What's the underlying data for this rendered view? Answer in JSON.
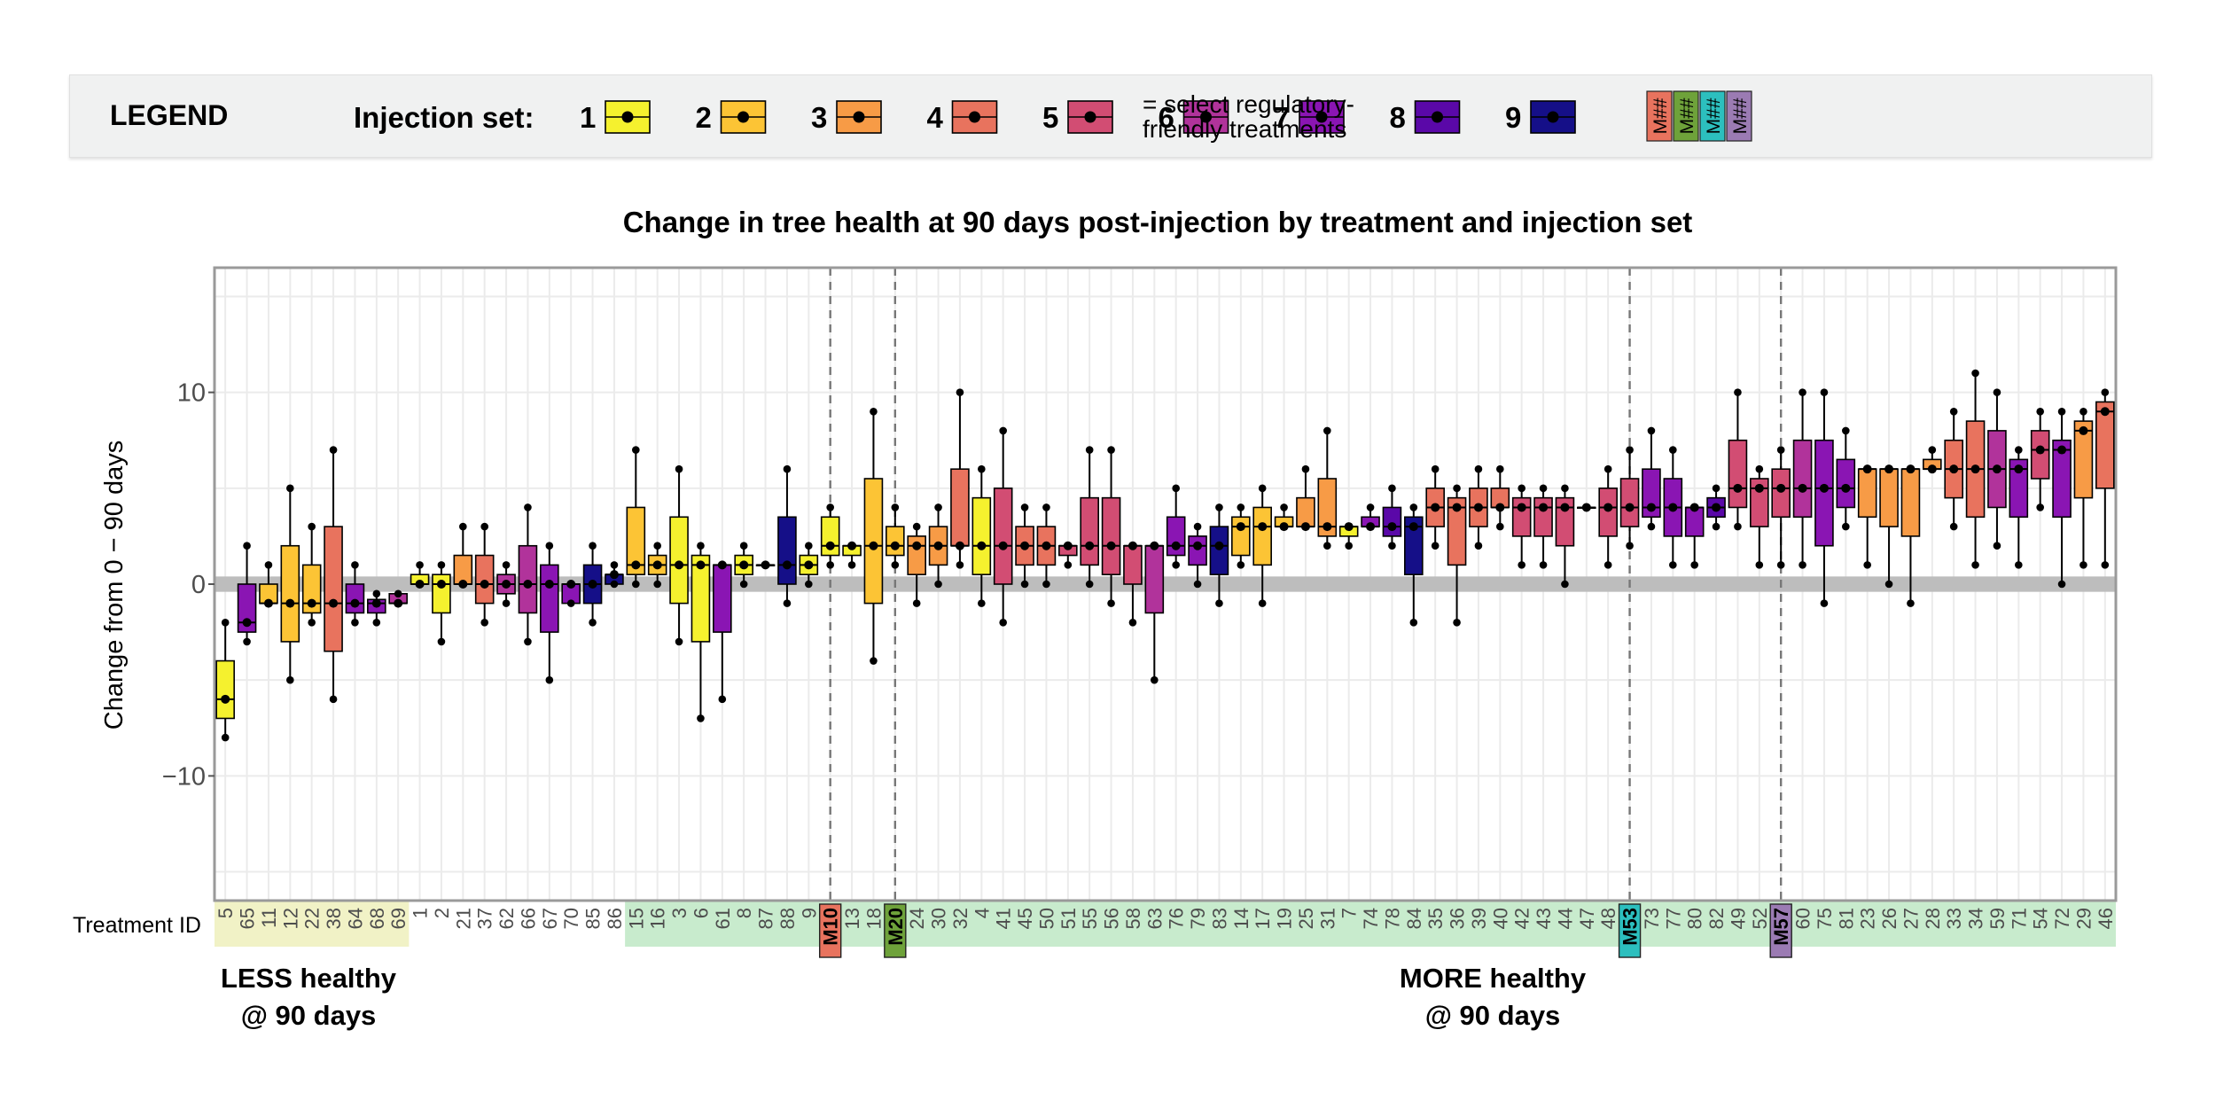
{
  "legend": {
    "title": "LEGEND",
    "injection_label": "Injection set:",
    "sets": [
      {
        "label": "1",
        "color": "#f5f12e"
      },
      {
        "label": "2",
        "color": "#fcc435"
      },
      {
        "label": "3",
        "color": "#f79b46"
      },
      {
        "label": "4",
        "color": "#e8735e"
      },
      {
        "label": "5",
        "color": "#d24d73"
      },
      {
        "label": "6",
        "color": "#b1339b"
      },
      {
        "label": "7",
        "color": "#8a15b3"
      },
      {
        "label": "8",
        "color": "#5a08a8"
      },
      {
        "label": "9",
        "color": "#150f88"
      }
    ],
    "swatch_text": "M##",
    "swatch_colors": [
      "#e8735e",
      "#6ea23a",
      "#2cbfbe",
      "#9b7bb3"
    ],
    "note_line1": "= select regulatory-",
    "note_line2": "friendly treatments"
  },
  "annotations": {
    "x_axis_title": "Treatment ID",
    "less_line1": "LESS healthy",
    "less_line2": "@ 90 days",
    "more_line1": "MORE healthy",
    "more_line2": "@ 90 days",
    "zone_colors": {
      "less": "#f1f2c6",
      "more": "#c8ebcd"
    }
  },
  "chart_data": {
    "type": "box",
    "title": "Change in tree health at 90 days post-injection by treatment and injection set",
    "xlabel": "Treatment ID",
    "ylabel": "Change from 0 − 90 days",
    "ylim": [
      -16.5,
      16.5
    ],
    "yticks": [
      -10,
      0,
      10
    ],
    "ytick_labels": [
      "−10",
      "0",
      "10"
    ],
    "series": [
      {
        "id": "5",
        "set": 1,
        "zone": "less",
        "q1": -7,
        "median": -6,
        "q3": -4,
        "min": -8,
        "max": -2
      },
      {
        "id": "65",
        "set": 7,
        "zone": "less",
        "q1": -2.5,
        "median": -2,
        "q3": 0,
        "min": -3,
        "max": 2
      },
      {
        "id": "11",
        "set": 2,
        "zone": "less",
        "q1": -1,
        "median": -1,
        "q3": 0,
        "min": -1,
        "max": 1
      },
      {
        "id": "12",
        "set": 2,
        "zone": "less",
        "q1": -3,
        "median": -1,
        "q3": 2,
        "min": -5,
        "max": 5
      },
      {
        "id": "22",
        "set": 2,
        "zone": "less",
        "q1": -1.5,
        "median": -1,
        "q3": 1,
        "min": -2,
        "max": 3
      },
      {
        "id": "38",
        "set": 4,
        "zone": "less",
        "q1": -3.5,
        "median": -1,
        "q3": 3,
        "min": -6,
        "max": 7
      },
      {
        "id": "64",
        "set": 7,
        "zone": "less",
        "q1": -1.5,
        "median": -1,
        "q3": 0,
        "min": -2,
        "max": 1
      },
      {
        "id": "68",
        "set": 7,
        "zone": "less",
        "q1": -1.5,
        "median": -1,
        "q3": -0.8,
        "min": -2,
        "max": -0.5
      },
      {
        "id": "69",
        "set": 6,
        "zone": "less",
        "q1": -1,
        "median": -1,
        "q3": -0.5,
        "min": -1,
        "max": -0.5
      },
      {
        "id": "1",
        "set": 1,
        "zone": "none",
        "q1": 0,
        "median": 0,
        "q3": 0.5,
        "min": 0,
        "max": 1
      },
      {
        "id": "2",
        "set": 1,
        "zone": "none",
        "q1": -1.5,
        "median": 0,
        "q3": 0.5,
        "min": -3,
        "max": 1
      },
      {
        "id": "21",
        "set": 3,
        "zone": "none",
        "q1": 0,
        "median": 0,
        "q3": 1.5,
        "min": 0,
        "max": 3
      },
      {
        "id": "37",
        "set": 4,
        "zone": "none",
        "q1": -1,
        "median": 0,
        "q3": 1.5,
        "min": -2,
        "max": 3
      },
      {
        "id": "62",
        "set": 6,
        "zone": "none",
        "q1": -0.5,
        "median": 0,
        "q3": 0.5,
        "min": -1,
        "max": 1
      },
      {
        "id": "66",
        "set": 6,
        "zone": "none",
        "q1": -1.5,
        "median": 0,
        "q3": 2,
        "min": -3,
        "max": 4
      },
      {
        "id": "67",
        "set": 7,
        "zone": "none",
        "q1": -2.5,
        "median": 0,
        "q3": 1,
        "min": -5,
        "max": 2
      },
      {
        "id": "70",
        "set": 7,
        "zone": "none",
        "q1": -1,
        "median": 0,
        "q3": 0,
        "min": -1,
        "max": 0
      },
      {
        "id": "85",
        "set": 9,
        "zone": "none",
        "q1": -1,
        "median": 0,
        "q3": 1,
        "min": -2,
        "max": 2
      },
      {
        "id": "86",
        "set": 9,
        "zone": "none",
        "q1": 0,
        "median": 0.5,
        "q3": 0.5,
        "min": 0,
        "max": 1
      },
      {
        "id": "15",
        "set": 2,
        "zone": "more",
        "q1": 0.5,
        "median": 1,
        "q3": 4,
        "min": 0,
        "max": 7
      },
      {
        "id": "16",
        "set": 2,
        "zone": "more",
        "q1": 0.5,
        "median": 1,
        "q3": 1.5,
        "min": 0,
        "max": 2
      },
      {
        "id": "3",
        "set": 1,
        "zone": "more",
        "q1": -1,
        "median": 1,
        "q3": 3.5,
        "min": -3,
        "max": 6
      },
      {
        "id": "6",
        "set": 1,
        "zone": "more",
        "q1": -3,
        "median": 1,
        "q3": 1.5,
        "min": -7,
        "max": 2
      },
      {
        "id": "61",
        "set": 7,
        "zone": "more",
        "q1": -2.5,
        "median": 1,
        "q3": 1,
        "min": -6,
        "max": 1
      },
      {
        "id": "8",
        "set": 1,
        "zone": "more",
        "q1": 0.5,
        "median": 1,
        "q3": 1.5,
        "min": 0,
        "max": 2
      },
      {
        "id": "87",
        "set": 9,
        "zone": "more",
        "q1": 1,
        "median": 1,
        "q3": 1,
        "min": 1,
        "max": 1
      },
      {
        "id": "88",
        "set": 9,
        "zone": "more",
        "q1": 0,
        "median": 1,
        "q3": 3.5,
        "min": -1,
        "max": 6
      },
      {
        "id": "9",
        "set": 1,
        "zone": "more",
        "q1": 0.5,
        "median": 1,
        "q3": 1.5,
        "min": 0,
        "max": 2
      },
      {
        "id": "M10",
        "set": 1,
        "zone": "more",
        "reg": "#e8735e",
        "q1": 1.5,
        "median": 2,
        "q3": 3.5,
        "min": 1,
        "max": 4
      },
      {
        "id": "13",
        "set": 1,
        "zone": "more",
        "q1": 1.5,
        "median": 2,
        "q3": 2,
        "min": 1,
        "max": 2
      },
      {
        "id": "18",
        "set": 2,
        "zone": "more",
        "q1": -1,
        "median": 2,
        "q3": 5.5,
        "min": -4,
        "max": 9
      },
      {
        "id": "M20",
        "set": 2,
        "zone": "more",
        "reg": "#6ea23a",
        "q1": 1.5,
        "median": 2,
        "q3": 3,
        "min": 1,
        "max": 4
      },
      {
        "id": "24",
        "set": 3,
        "zone": "more",
        "q1": 0.5,
        "median": 2,
        "q3": 2.5,
        "min": -1,
        "max": 3
      },
      {
        "id": "30",
        "set": 3,
        "zone": "more",
        "q1": 1,
        "median": 2,
        "q3": 3,
        "min": 0,
        "max": 4
      },
      {
        "id": "32",
        "set": 4,
        "zone": "more",
        "q1": 2,
        "median": 2,
        "q3": 6,
        "min": 1,
        "max": 10
      },
      {
        "id": "4",
        "set": 1,
        "zone": "more",
        "q1": 0.5,
        "median": 2,
        "q3": 4.5,
        "min": -1,
        "max": 6
      },
      {
        "id": "41",
        "set": 5,
        "zone": "more",
        "q1": 0,
        "median": 2,
        "q3": 5,
        "min": -2,
        "max": 8
      },
      {
        "id": "45",
        "set": 4,
        "zone": "more",
        "q1": 1,
        "median": 2,
        "q3": 3,
        "min": 0,
        "max": 4
      },
      {
        "id": "50",
        "set": 4,
        "zone": "more",
        "q1": 1,
        "median": 2,
        "q3": 3,
        "min": 0,
        "max": 4
      },
      {
        "id": "51",
        "set": 5,
        "zone": "more",
        "q1": 1.5,
        "median": 2,
        "q3": 2,
        "min": 1,
        "max": 2
      },
      {
        "id": "55",
        "set": 5,
        "zone": "more",
        "q1": 1,
        "median": 2,
        "q3": 4.5,
        "min": 0,
        "max": 7
      },
      {
        "id": "56",
        "set": 5,
        "zone": "more",
        "q1": 0.5,
        "median": 2,
        "q3": 4.5,
        "min": -1,
        "max": 7
      },
      {
        "id": "58",
        "set": 5,
        "zone": "more",
        "q1": 0,
        "median": 2,
        "q3": 2,
        "min": -2,
        "max": 2
      },
      {
        "id": "63",
        "set": 6,
        "zone": "more",
        "q1": -1.5,
        "median": 2,
        "q3": 2,
        "min": -5,
        "max": 2
      },
      {
        "id": "76",
        "set": 7,
        "zone": "more",
        "q1": 1.5,
        "median": 2,
        "q3": 3.5,
        "min": 1,
        "max": 5
      },
      {
        "id": "79",
        "set": 7,
        "zone": "more",
        "q1": 1,
        "median": 2,
        "q3": 2.5,
        "min": 0,
        "max": 3
      },
      {
        "id": "83",
        "set": 9,
        "zone": "more",
        "q1": 0.5,
        "median": 2,
        "q3": 3,
        "min": -1,
        "max": 4
      },
      {
        "id": "14",
        "set": 2,
        "zone": "more",
        "q1": 1.5,
        "median": 3,
        "q3": 3.5,
        "min": 1,
        "max": 4
      },
      {
        "id": "17",
        "set": 2,
        "zone": "more",
        "q1": 1,
        "median": 3,
        "q3": 4,
        "min": -1,
        "max": 5
      },
      {
        "id": "19",
        "set": 2,
        "zone": "more",
        "q1": 3,
        "median": 3,
        "q3": 3.5,
        "min": 3,
        "max": 4
      },
      {
        "id": "25",
        "set": 3,
        "zone": "more",
        "q1": 3,
        "median": 3,
        "q3": 4.5,
        "min": 3,
        "max": 6
      },
      {
        "id": "31",
        "set": 3,
        "zone": "more",
        "q1": 2.5,
        "median": 3,
        "q3": 5.5,
        "min": 2,
        "max": 8
      },
      {
        "id": "7",
        "set": 1,
        "zone": "more",
        "q1": 2.5,
        "median": 3,
        "q3": 3,
        "min": 2,
        "max": 3
      },
      {
        "id": "74",
        "set": 7,
        "zone": "more",
        "q1": 3,
        "median": 3,
        "q3": 3.5,
        "min": 3,
        "max": 4
      },
      {
        "id": "78",
        "set": 8,
        "zone": "more",
        "q1": 2.5,
        "median": 3,
        "q3": 4,
        "min": 2,
        "max": 5
      },
      {
        "id": "84",
        "set": 9,
        "zone": "more",
        "q1": 0.5,
        "median": 3,
        "q3": 3.5,
        "min": -2,
        "max": 4
      },
      {
        "id": "35",
        "set": 4,
        "zone": "more",
        "q1": 3,
        "median": 4,
        "q3": 5,
        "min": 2,
        "max": 6
      },
      {
        "id": "36",
        "set": 4,
        "zone": "more",
        "q1": 1,
        "median": 4,
        "q3": 4.5,
        "min": -2,
        "max": 5
      },
      {
        "id": "39",
        "set": 4,
        "zone": "more",
        "q1": 3,
        "median": 4,
        "q3": 5,
        "min": 2,
        "max": 6
      },
      {
        "id": "40",
        "set": 4,
        "zone": "more",
        "q1": 4,
        "median": 4,
        "q3": 5,
        "min": 3,
        "max": 6
      },
      {
        "id": "42",
        "set": 5,
        "zone": "more",
        "q1": 2.5,
        "median": 4,
        "q3": 4.5,
        "min": 1,
        "max": 5
      },
      {
        "id": "43",
        "set": 5,
        "zone": "more",
        "q1": 2.5,
        "median": 4,
        "q3": 4.5,
        "min": 1,
        "max": 5
      },
      {
        "id": "44",
        "set": 5,
        "zone": "more",
        "q1": 2,
        "median": 4,
        "q3": 4.5,
        "min": 0,
        "max": 5
      },
      {
        "id": "47",
        "set": 5,
        "zone": "more",
        "q1": 4,
        "median": 4,
        "q3": 4,
        "min": 4,
        "max": 4
      },
      {
        "id": "48",
        "set": 5,
        "zone": "more",
        "q1": 2.5,
        "median": 4,
        "q3": 5,
        "min": 1,
        "max": 6
      },
      {
        "id": "M53",
        "set": 5,
        "zone": "more",
        "reg": "#2cbfbe",
        "q1": 3,
        "median": 4,
        "q3": 5.5,
        "min": 2,
        "max": 7
      },
      {
        "id": "73",
        "set": 7,
        "zone": "more",
        "q1": 3.5,
        "median": 4,
        "q3": 6,
        "min": 3,
        "max": 8
      },
      {
        "id": "77",
        "set": 7,
        "zone": "more",
        "q1": 2.5,
        "median": 4,
        "q3": 5.5,
        "min": 1,
        "max": 7
      },
      {
        "id": "80",
        "set": 7,
        "zone": "more",
        "q1": 2.5,
        "median": 4,
        "q3": 4,
        "min": 1,
        "max": 4
      },
      {
        "id": "82",
        "set": 8,
        "zone": "more",
        "q1": 3.5,
        "median": 4,
        "q3": 4.5,
        "min": 3,
        "max": 5
      },
      {
        "id": "49",
        "set": 5,
        "zone": "more",
        "q1": 4,
        "median": 5,
        "q3": 7.5,
        "min": 3,
        "max": 10
      },
      {
        "id": "52",
        "set": 5,
        "zone": "more",
        "q1": 3,
        "median": 5,
        "q3": 5.5,
        "min": 1,
        "max": 6
      },
      {
        "id": "M57",
        "set": 5,
        "zone": "more",
        "reg": "#9b7bb3",
        "q1": 3.5,
        "median": 5,
        "q3": 6,
        "min": 1,
        "max": 7
      },
      {
        "id": "60",
        "set": 6,
        "zone": "more",
        "q1": 3.5,
        "median": 5,
        "q3": 7.5,
        "min": 1,
        "max": 10
      },
      {
        "id": "75",
        "set": 7,
        "zone": "more",
        "q1": 2,
        "median": 5,
        "q3": 7.5,
        "min": -1,
        "max": 10
      },
      {
        "id": "81",
        "set": 7,
        "zone": "more",
        "q1": 4,
        "median": 5,
        "q3": 6.5,
        "min": 3,
        "max": 8
      },
      {
        "id": "23",
        "set": 3,
        "zone": "more",
        "q1": 3.5,
        "median": 6,
        "q3": 6,
        "min": 1,
        "max": 6
      },
      {
        "id": "26",
        "set": 3,
        "zone": "more",
        "q1": 3,
        "median": 6,
        "q3": 6,
        "min": 0,
        "max": 6
      },
      {
        "id": "27",
        "set": 3,
        "zone": "more",
        "q1": 2.5,
        "median": 6,
        "q3": 6,
        "min": -1,
        "max": 6
      },
      {
        "id": "28",
        "set": 3,
        "zone": "more",
        "q1": 6,
        "median": 6,
        "q3": 6.5,
        "min": 6,
        "max": 7
      },
      {
        "id": "33",
        "set": 4,
        "zone": "more",
        "q1": 4.5,
        "median": 6,
        "q3": 7.5,
        "min": 3,
        "max": 9
      },
      {
        "id": "34",
        "set": 4,
        "zone": "more",
        "q1": 3.5,
        "median": 6,
        "q3": 8.5,
        "min": 1,
        "max": 11
      },
      {
        "id": "59",
        "set": 6,
        "zone": "more",
        "q1": 4,
        "median": 6,
        "q3": 8,
        "min": 2,
        "max": 10
      },
      {
        "id": "71",
        "set": 7,
        "zone": "more",
        "q1": 3.5,
        "median": 6,
        "q3": 6.5,
        "min": 1,
        "max": 7
      },
      {
        "id": "54",
        "set": 5,
        "zone": "more",
        "q1": 5.5,
        "median": 7,
        "q3": 8,
        "min": 4,
        "max": 9
      },
      {
        "id": "72",
        "set": 7,
        "zone": "more",
        "q1": 3.5,
        "median": 7,
        "q3": 7.5,
        "min": 0,
        "max": 9
      },
      {
        "id": "29",
        "set": 3,
        "zone": "more",
        "q1": 4.5,
        "median": 8,
        "q3": 8.5,
        "min": 1,
        "max": 9
      },
      {
        "id": "46",
        "set": 4,
        "zone": "more",
        "q1": 5,
        "median": 9,
        "q3": 9.5,
        "min": 1,
        "max": 10
      }
    ]
  }
}
